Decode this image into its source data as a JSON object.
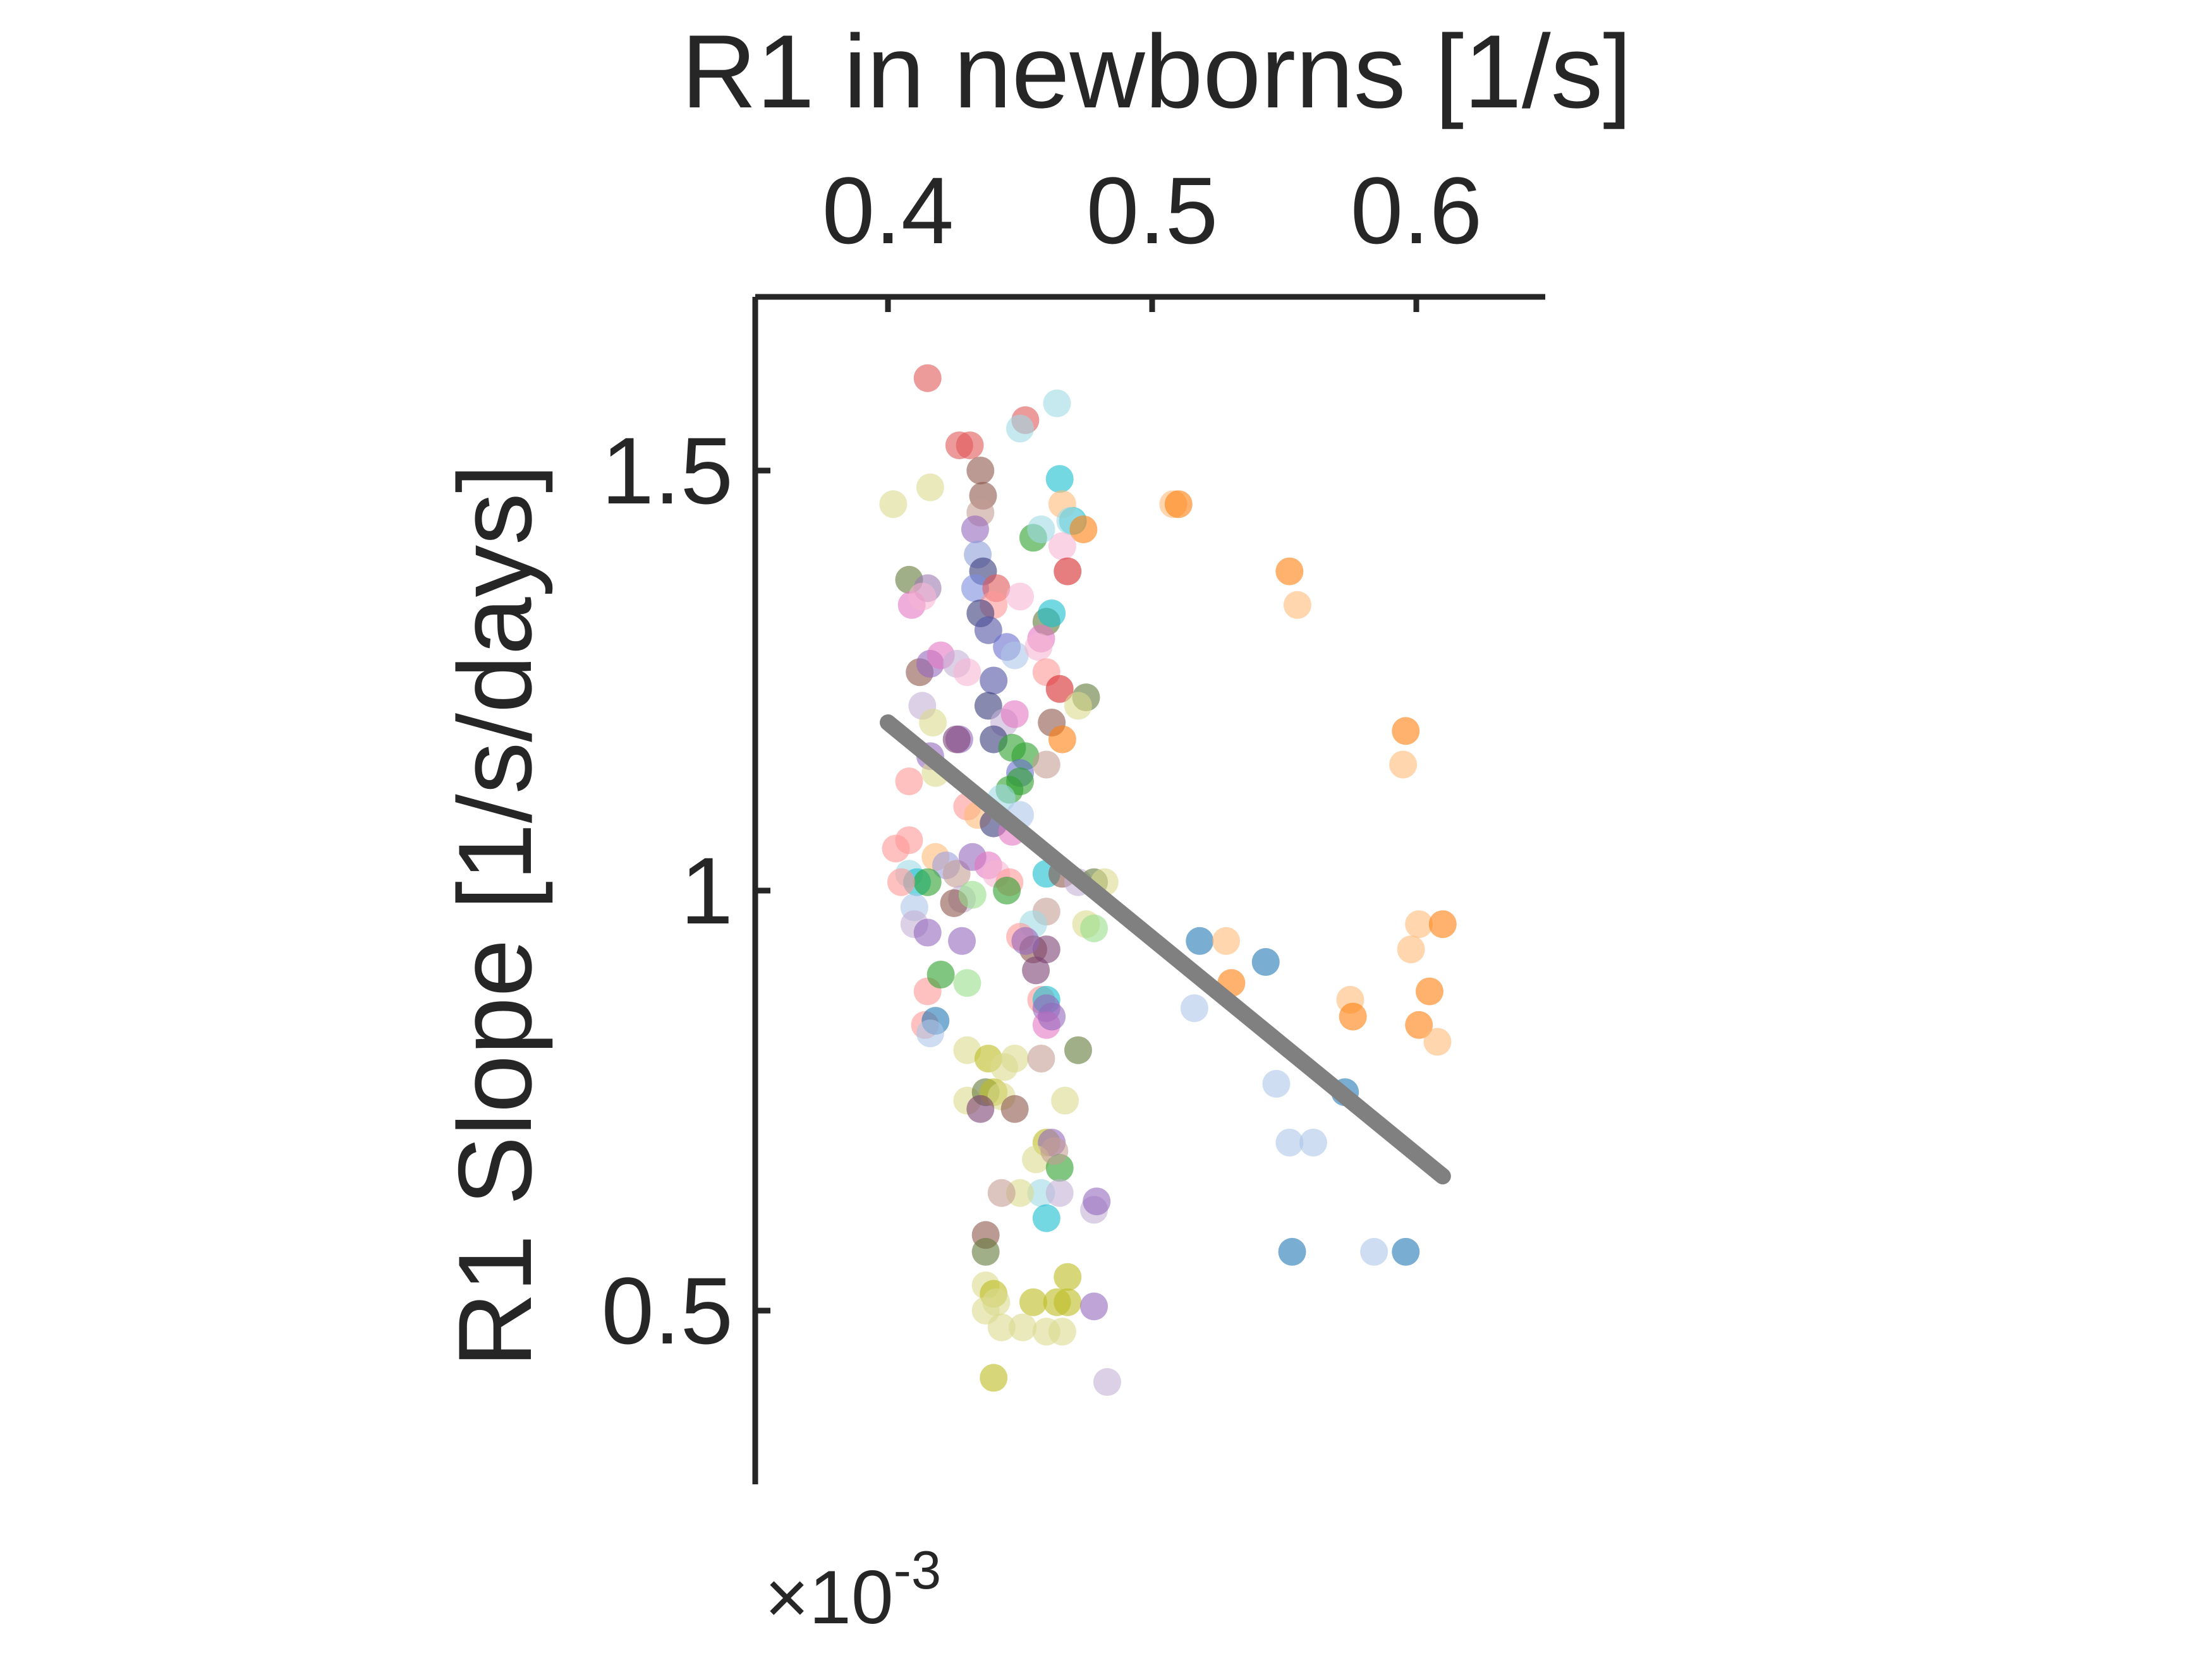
{
  "chart_data": {
    "type": "scatter",
    "xlabel": "R1 in newborns [1/s]",
    "ylabel": "R1 Slope [1/s/days]",
    "y_exponent_label": "×10",
    "y_exponent_power": "-3",
    "x_axis_position": "top",
    "xlim": [
      0.35,
      0.65
    ],
    "ylim": [
      0.3,
      1.7
    ],
    "xticks": [
      0.4,
      0.5,
      0.6
    ],
    "xtick_labels": [
      "0.4",
      "0.5",
      "0.6"
    ],
    "yticks": [
      0.5,
      1.0,
      1.5
    ],
    "ytick_labels": [
      "0.5",
      "1",
      "1.5"
    ],
    "grid": false,
    "fit_line": {
      "x": [
        0.4,
        0.61
      ],
      "y": [
        1.2,
        0.66
      ],
      "color": "#808080"
    },
    "points": [
      {
        "x": 0.415,
        "y": 1.61,
        "c": "#e15759"
      },
      {
        "x": 0.427,
        "y": 1.53,
        "c": "#e15759"
      },
      {
        "x": 0.431,
        "y": 1.53,
        "c": "#e15759"
      },
      {
        "x": 0.452,
        "y": 1.56,
        "c": "#e15759"
      },
      {
        "x": 0.464,
        "y": 1.58,
        "c": "#9edae5"
      },
      {
        "x": 0.45,
        "y": 1.55,
        "c": "#9edae5"
      },
      {
        "x": 0.402,
        "y": 1.46,
        "c": "#dbdb8d"
      },
      {
        "x": 0.416,
        "y": 1.48,
        "c": "#dbdb8d"
      },
      {
        "x": 0.435,
        "y": 1.5,
        "c": "#8c564b"
      },
      {
        "x": 0.436,
        "y": 1.47,
        "c": "#8c564b"
      },
      {
        "x": 0.435,
        "y": 1.45,
        "c": "#c49c94"
      },
      {
        "x": 0.433,
        "y": 1.43,
        "c": "#9467bd"
      },
      {
        "x": 0.434,
        "y": 1.4,
        "c": "#8c9ed9"
      },
      {
        "x": 0.436,
        "y": 1.38,
        "c": "#393b79"
      },
      {
        "x": 0.433,
        "y": 1.36,
        "c": "#7b8ede"
      },
      {
        "x": 0.441,
        "y": 1.36,
        "c": "#e15759"
      },
      {
        "x": 0.45,
        "y": 1.35,
        "c": "#f7b6d2"
      },
      {
        "x": 0.44,
        "y": 1.34,
        "c": "#ff9896"
      },
      {
        "x": 0.408,
        "y": 1.37,
        "c": "#637939"
      },
      {
        "x": 0.415,
        "y": 1.36,
        "c": "#9c7ab3"
      },
      {
        "x": 0.409,
        "y": 1.34,
        "c": "#e377c2"
      },
      {
        "x": 0.413,
        "y": 1.35,
        "c": "#f7b6d2"
      },
      {
        "x": 0.435,
        "y": 1.33,
        "c": "#393b79"
      },
      {
        "x": 0.438,
        "y": 1.31,
        "c": "#5254a3"
      },
      {
        "x": 0.445,
        "y": 1.29,
        "c": "#6b6ecf"
      },
      {
        "x": 0.448,
        "y": 1.28,
        "c": "#aec7e8"
      },
      {
        "x": 0.46,
        "y": 1.32,
        "c": "#637939"
      },
      {
        "x": 0.462,
        "y": 1.33,
        "c": "#17becf"
      },
      {
        "x": 0.458,
        "y": 1.3,
        "c": "#e377c2"
      },
      {
        "x": 0.457,
        "y": 1.29,
        "c": "#f7b6d2"
      },
      {
        "x": 0.465,
        "y": 1.49,
        "c": "#17becf"
      },
      {
        "x": 0.466,
        "y": 1.46,
        "c": "#ffbb78"
      },
      {
        "x": 0.47,
        "y": 1.44,
        "c": "#17becf"
      },
      {
        "x": 0.469,
        "y": 1.44,
        "c": "#9edae5"
      },
      {
        "x": 0.474,
        "y": 1.43,
        "c": "#ff7f0e"
      },
      {
        "x": 0.466,
        "y": 1.41,
        "c": "#f7b6d2"
      },
      {
        "x": 0.455,
        "y": 1.42,
        "c": "#2ca02c"
      },
      {
        "x": 0.458,
        "y": 1.43,
        "c": "#9edae5"
      },
      {
        "x": 0.468,
        "y": 1.38,
        "c": "#d62728"
      },
      {
        "x": 0.508,
        "y": 1.46,
        "c": "#ffbb78"
      },
      {
        "x": 0.51,
        "y": 1.46,
        "c": "#ff7f0e"
      },
      {
        "x": 0.552,
        "y": 1.38,
        "c": "#ff7f0e"
      },
      {
        "x": 0.555,
        "y": 1.34,
        "c": "#ffbb78"
      },
      {
        "x": 0.596,
        "y": 1.19,
        "c": "#ff7f0e"
      },
      {
        "x": 0.595,
        "y": 1.15,
        "c": "#ffbb78"
      },
      {
        "x": 0.412,
        "y": 1.26,
        "c": "#8c564b"
      },
      {
        "x": 0.416,
        "y": 1.27,
        "c": "#9467bd"
      },
      {
        "x": 0.42,
        "y": 1.28,
        "c": "#e377c2"
      },
      {
        "x": 0.426,
        "y": 1.27,
        "c": "#c5b0d5"
      },
      {
        "x": 0.43,
        "y": 1.26,
        "c": "#f7b6d2"
      },
      {
        "x": 0.44,
        "y": 1.25,
        "c": "#5254a3"
      },
      {
        "x": 0.438,
        "y": 1.22,
        "c": "#393b79"
      },
      {
        "x": 0.444,
        "y": 1.2,
        "c": "#c5b0d5"
      },
      {
        "x": 0.448,
        "y": 1.21,
        "c": "#e377c2"
      },
      {
        "x": 0.46,
        "y": 1.26,
        "c": "#ff9896"
      },
      {
        "x": 0.465,
        "y": 1.24,
        "c": "#d62728"
      },
      {
        "x": 0.475,
        "y": 1.23,
        "c": "#637939"
      },
      {
        "x": 0.472,
        "y": 1.22,
        "c": "#dbdb8d"
      },
      {
        "x": 0.462,
        "y": 1.2,
        "c": "#8c564b"
      },
      {
        "x": 0.466,
        "y": 1.18,
        "c": "#ff7f0e"
      },
      {
        "x": 0.413,
        "y": 1.22,
        "c": "#c5b0d5"
      },
      {
        "x": 0.417,
        "y": 1.2,
        "c": "#dbdb8d"
      },
      {
        "x": 0.427,
        "y": 1.18,
        "c": "#9467bd"
      },
      {
        "x": 0.426,
        "y": 1.18,
        "c": "#7b4173"
      },
      {
        "x": 0.44,
        "y": 1.18,
        "c": "#393b79"
      },
      {
        "x": 0.447,
        "y": 1.17,
        "c": "#2ca02c"
      },
      {
        "x": 0.452,
        "y": 1.16,
        "c": "#2ca02c"
      },
      {
        "x": 0.45,
        "y": 1.14,
        "c": "#6b6ecf"
      },
      {
        "x": 0.46,
        "y": 1.15,
        "c": "#c49c94"
      },
      {
        "x": 0.45,
        "y": 1.13,
        "c": "#2ca02c"
      },
      {
        "x": 0.446,
        "y": 1.12,
        "c": "#2ca02c"
      },
      {
        "x": 0.443,
        "y": 1.11,
        "c": "#9edae5"
      },
      {
        "x": 0.416,
        "y": 1.16,
        "c": "#9467bd"
      },
      {
        "x": 0.408,
        "y": 1.13,
        "c": "#ff9896"
      },
      {
        "x": 0.418,
        "y": 1.14,
        "c": "#dbdb8d"
      },
      {
        "x": 0.43,
        "y": 1.1,
        "c": "#ff9896"
      },
      {
        "x": 0.434,
        "y": 1.09,
        "c": "#ffbb78"
      },
      {
        "x": 0.44,
        "y": 1.08,
        "c": "#393b79"
      },
      {
        "x": 0.45,
        "y": 1.09,
        "c": "#aec7e8"
      },
      {
        "x": 0.447,
        "y": 1.07,
        "c": "#e377c2"
      },
      {
        "x": 0.403,
        "y": 1.05,
        "c": "#ff9896"
      },
      {
        "x": 0.408,
        "y": 1.06,
        "c": "#ff9896"
      },
      {
        "x": 0.418,
        "y": 1.04,
        "c": "#ffbb78"
      },
      {
        "x": 0.422,
        "y": 1.03,
        "c": "#9c9ede"
      },
      {
        "x": 0.426,
        "y": 1.02,
        "c": "#c49c94"
      },
      {
        "x": 0.432,
        "y": 1.04,
        "c": "#9467bd"
      },
      {
        "x": 0.438,
        "y": 1.03,
        "c": "#e377c2"
      },
      {
        "x": 0.441,
        "y": 1.02,
        "c": "#f7b6d2"
      },
      {
        "x": 0.446,
        "y": 1.01,
        "c": "#ff9896"
      },
      {
        "x": 0.408,
        "y": 1.02,
        "c": "#9edae5"
      },
      {
        "x": 0.411,
        "y": 1.01,
        "c": "#17becf"
      },
      {
        "x": 0.415,
        "y": 1.01,
        "c": "#2ca02c"
      },
      {
        "x": 0.405,
        "y": 1.01,
        "c": "#ff9896"
      },
      {
        "x": 0.46,
        "y": 1.02,
        "c": "#17becf"
      },
      {
        "x": 0.466,
        "y": 1.02,
        "c": "#8c564b"
      },
      {
        "x": 0.472,
        "y": 1.01,
        "c": "#c5b0d5"
      },
      {
        "x": 0.478,
        "y": 1.01,
        "c": "#637939"
      },
      {
        "x": 0.482,
        "y": 1.01,
        "c": "#dbdb8d"
      },
      {
        "x": 0.445,
        "y": 1.0,
        "c": "#2ca02c"
      },
      {
        "x": 0.428,
        "y": 0.99,
        "c": "#c5b0d5"
      },
      {
        "x": 0.425,
        "y": 0.985,
        "c": "#8c564b"
      },
      {
        "x": 0.432,
        "y": 0.995,
        "c": "#98df8a"
      },
      {
        "x": 0.41,
        "y": 0.98,
        "c": "#aec7e8"
      },
      {
        "x": 0.41,
        "y": 0.96,
        "c": "#c5b0d5"
      },
      {
        "x": 0.415,
        "y": 0.95,
        "c": "#9467bd"
      },
      {
        "x": 0.428,
        "y": 0.94,
        "c": "#9467bd"
      },
      {
        "x": 0.46,
        "y": 0.975,
        "c": "#c49c94"
      },
      {
        "x": 0.455,
        "y": 0.96,
        "c": "#9edae5"
      },
      {
        "x": 0.475,
        "y": 0.96,
        "c": "#dbdb8d"
      },
      {
        "x": 0.478,
        "y": 0.955,
        "c": "#98df8a"
      },
      {
        "x": 0.45,
        "y": 0.945,
        "c": "#ff9896"
      },
      {
        "x": 0.455,
        "y": 0.93,
        "c": "#8c564b"
      },
      {
        "x": 0.46,
        "y": 0.93,
        "c": "#7b4173"
      },
      {
        "x": 0.452,
        "y": 0.94,
        "c": "#9467bd"
      },
      {
        "x": 0.456,
        "y": 0.905,
        "c": "#7b4173"
      },
      {
        "x": 0.518,
        "y": 0.94,
        "c": "#1f77b4"
      },
      {
        "x": 0.528,
        "y": 0.94,
        "c": "#ffbb78"
      },
      {
        "x": 0.53,
        "y": 0.89,
        "c": "#ff7f0e"
      },
      {
        "x": 0.543,
        "y": 0.915,
        "c": "#1f77b4"
      },
      {
        "x": 0.516,
        "y": 0.86,
        "c": "#aec7e8"
      },
      {
        "x": 0.575,
        "y": 0.87,
        "c": "#ffbb78"
      },
      {
        "x": 0.576,
        "y": 0.85,
        "c": "#ff7f0e"
      },
      {
        "x": 0.601,
        "y": 0.96,
        "c": "#ffbb78"
      },
      {
        "x": 0.61,
        "y": 0.96,
        "c": "#ff7f0e"
      },
      {
        "x": 0.598,
        "y": 0.93,
        "c": "#ffbb78"
      },
      {
        "x": 0.605,
        "y": 0.88,
        "c": "#ff7f0e"
      },
      {
        "x": 0.601,
        "y": 0.84,
        "c": "#ff7f0e"
      },
      {
        "x": 0.608,
        "y": 0.82,
        "c": "#ffbb78"
      },
      {
        "x": 0.415,
        "y": 0.88,
        "c": "#ff9896"
      },
      {
        "x": 0.42,
        "y": 0.9,
        "c": "#2ca02c"
      },
      {
        "x": 0.43,
        "y": 0.89,
        "c": "#98df8a"
      },
      {
        "x": 0.414,
        "y": 0.84,
        "c": "#ff9896"
      },
      {
        "x": 0.418,
        "y": 0.845,
        "c": "#1f77b4"
      },
      {
        "x": 0.416,
        "y": 0.83,
        "c": "#aec7e8"
      },
      {
        "x": 0.458,
        "y": 0.87,
        "c": "#ff9896"
      },
      {
        "x": 0.46,
        "y": 0.87,
        "c": "#17becf"
      },
      {
        "x": 0.46,
        "y": 0.86,
        "c": "#9467bd"
      },
      {
        "x": 0.46,
        "y": 0.84,
        "c": "#e377c2"
      },
      {
        "x": 0.462,
        "y": 0.85,
        "c": "#9467bd"
      },
      {
        "x": 0.43,
        "y": 0.81,
        "c": "#dbdb8d"
      },
      {
        "x": 0.438,
        "y": 0.8,
        "c": "#bcbd22"
      },
      {
        "x": 0.444,
        "y": 0.79,
        "c": "#dbdb8d"
      },
      {
        "x": 0.448,
        "y": 0.8,
        "c": "#dbdb8d"
      },
      {
        "x": 0.458,
        "y": 0.8,
        "c": "#c49c94"
      },
      {
        "x": 0.472,
        "y": 0.81,
        "c": "#637939"
      },
      {
        "x": 0.43,
        "y": 0.75,
        "c": "#dbdb8d"
      },
      {
        "x": 0.437,
        "y": 0.76,
        "c": "#637939"
      },
      {
        "x": 0.44,
        "y": 0.76,
        "c": "#bcbd22"
      },
      {
        "x": 0.443,
        "y": 0.755,
        "c": "#dbdb8d"
      },
      {
        "x": 0.435,
        "y": 0.74,
        "c": "#7b4173"
      },
      {
        "x": 0.448,
        "y": 0.74,
        "c": "#8c564b"
      },
      {
        "x": 0.467,
        "y": 0.75,
        "c": "#dbdb8d"
      },
      {
        "x": 0.46,
        "y": 0.7,
        "c": "#bcbd22"
      },
      {
        "x": 0.462,
        "y": 0.7,
        "c": "#9467bd"
      },
      {
        "x": 0.456,
        "y": 0.68,
        "c": "#dbdb8d"
      },
      {
        "x": 0.465,
        "y": 0.67,
        "c": "#2ca02c"
      },
      {
        "x": 0.463,
        "y": 0.69,
        "c": "#c49c94"
      },
      {
        "x": 0.458,
        "y": 0.64,
        "c": "#9edae5"
      },
      {
        "x": 0.465,
        "y": 0.64,
        "c": "#c5b0d5"
      },
      {
        "x": 0.45,
        "y": 0.64,
        "c": "#dbdb8d"
      },
      {
        "x": 0.443,
        "y": 0.64,
        "c": "#c49c94"
      },
      {
        "x": 0.46,
        "y": 0.61,
        "c": "#17becf"
      },
      {
        "x": 0.478,
        "y": 0.62,
        "c": "#c5b0d5"
      },
      {
        "x": 0.479,
        "y": 0.63,
        "c": "#9467bd"
      },
      {
        "x": 0.547,
        "y": 0.77,
        "c": "#aec7e8"
      },
      {
        "x": 0.552,
        "y": 0.7,
        "c": "#aec7e8"
      },
      {
        "x": 0.561,
        "y": 0.7,
        "c": "#aec7e8"
      },
      {
        "x": 0.573,
        "y": 0.76,
        "c": "#1f77b4"
      },
      {
        "x": 0.553,
        "y": 0.57,
        "c": "#1f77b4"
      },
      {
        "x": 0.584,
        "y": 0.57,
        "c": "#aec7e8"
      },
      {
        "x": 0.596,
        "y": 0.57,
        "c": "#1f77b4"
      },
      {
        "x": 0.437,
        "y": 0.59,
        "c": "#8c564b"
      },
      {
        "x": 0.437,
        "y": 0.57,
        "c": "#637939"
      },
      {
        "x": 0.437,
        "y": 0.53,
        "c": "#dbdb8d"
      },
      {
        "x": 0.44,
        "y": 0.52,
        "c": "#bcbd22"
      },
      {
        "x": 0.437,
        "y": 0.5,
        "c": "#dbdb8d"
      },
      {
        "x": 0.441,
        "y": 0.51,
        "c": "#dbdb8d"
      },
      {
        "x": 0.455,
        "y": 0.51,
        "c": "#bcbd22"
      },
      {
        "x": 0.464,
        "y": 0.51,
        "c": "#bcbd22"
      },
      {
        "x": 0.468,
        "y": 0.51,
        "c": "#bcbd22"
      },
      {
        "x": 0.468,
        "y": 0.54,
        "c": "#bcbd22"
      },
      {
        "x": 0.478,
        "y": 0.505,
        "c": "#9467bd"
      },
      {
        "x": 0.443,
        "y": 0.48,
        "c": "#dbdb8d"
      },
      {
        "x": 0.451,
        "y": 0.48,
        "c": "#dbdb8d"
      },
      {
        "x": 0.46,
        "y": 0.475,
        "c": "#dbdb8d"
      },
      {
        "x": 0.466,
        "y": 0.475,
        "c": "#dbdb8d"
      },
      {
        "x": 0.44,
        "y": 0.42,
        "c": "#bcbd22"
      },
      {
        "x": 0.483,
        "y": 0.415,
        "c": "#c5b0d5"
      }
    ]
  }
}
